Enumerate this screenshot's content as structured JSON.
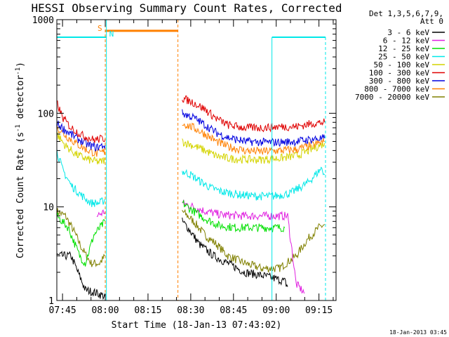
{
  "chart_data": {
    "type": "line",
    "title": "HESSI Observing Summary Count Rates, Corrected",
    "xlabel": "Start Time (18-Jan-13 07:43:02)",
    "ylabel": "Corrected Count Rate (s",
    "ylabel_sup1": "-1",
    "ylabel_mid": " detector",
    "ylabel_sup2": "-1",
    "ylabel_end": ")",
    "x_unit": "minutes from 07:43:02",
    "xlim": [
      0,
      98
    ],
    "ylim": [
      1,
      1000
    ],
    "yscale": "log",
    "x_ticks": [
      {
        "label": "07:45",
        "x": 2
      },
      {
        "label": "08:00",
        "x": 17
      },
      {
        "label": "08:15",
        "x": 32
      },
      {
        "label": "08:30",
        "x": 47
      },
      {
        "label": "08:45",
        "x": 62
      },
      {
        "label": "09:00",
        "x": 77
      },
      {
        "label": "09:15",
        "x": 92
      }
    ],
    "y_ticks": [
      {
        "label": "1",
        "y": 1
      },
      {
        "label": "10",
        "y": 10
      },
      {
        "label": "100",
        "y": 100
      },
      {
        "label": "1000",
        "y": 1000
      }
    ],
    "legend_header": [
      "Det 1,3,5,6,7,9,",
      "Att 0"
    ],
    "legend_position": "right",
    "series": [
      {
        "name": "3 - 6 keV",
        "color": "#000000",
        "seg1": [
          [
            0,
            3
          ],
          [
            5,
            3
          ],
          [
            10,
            1.3
          ],
          [
            14,
            1.2
          ],
          [
            17,
            1.1
          ]
        ],
        "seg2": [
          [
            44,
            7
          ],
          [
            46,
            6
          ],
          [
            50,
            4
          ],
          [
            55,
            3
          ],
          [
            60,
            2.5
          ],
          [
            66,
            2
          ],
          [
            74,
            1.8
          ],
          [
            80,
            1.6
          ],
          [
            81,
            1.4
          ]
        ]
      },
      {
        "name": "6 - 12 keV",
        "color": "#e020e0",
        "seg1": [
          [
            14,
            8
          ],
          [
            17,
            9
          ]
        ],
        "seg2": [
          [
            44,
            11
          ],
          [
            48,
            10
          ],
          [
            52,
            9
          ],
          [
            58,
            8.2
          ],
          [
            66,
            8
          ],
          [
            74,
            8
          ],
          [
            80,
            8
          ],
          [
            81,
            8
          ],
          [
            84,
            1.5
          ],
          [
            87,
            1.2
          ]
        ]
      },
      {
        "name": "12 - 25 keV",
        "color": "#00e000",
        "seg1": [
          [
            0,
            8
          ],
          [
            4,
            6
          ],
          [
            8,
            3
          ],
          [
            10,
            2.5
          ],
          [
            13,
            5
          ],
          [
            17,
            7
          ]
        ],
        "seg2": [
          [
            44,
            11
          ],
          [
            48,
            9
          ],
          [
            52,
            7.5
          ],
          [
            57,
            6.3
          ],
          [
            63,
            6
          ],
          [
            70,
            6
          ],
          [
            76,
            6
          ],
          [
            80,
            6
          ]
        ]
      },
      {
        "name": "25 - 50 keV",
        "color": "#00e8e8",
        "seg1": [
          [
            0,
            40
          ],
          [
            2,
            25
          ],
          [
            5,
            17
          ],
          [
            9,
            13
          ],
          [
            12,
            11
          ],
          [
            15,
            11
          ],
          [
            17,
            12
          ]
        ],
        "seg2": [
          [
            44,
            24
          ],
          [
            47,
            22
          ],
          [
            50,
            19
          ],
          [
            54,
            16
          ],
          [
            58,
            14.5
          ],
          [
            64,
            13.5
          ],
          [
            70,
            13
          ],
          [
            76,
            13
          ],
          [
            82,
            14
          ],
          [
            88,
            18
          ],
          [
            93,
            26
          ],
          [
            94,
            22
          ]
        ]
      },
      {
        "name": "50 - 100 keV",
        "color": "#d4d400",
        "seg1": [
          [
            0,
            60
          ],
          [
            3,
            45
          ],
          [
            7,
            36
          ],
          [
            11,
            32
          ],
          [
            15,
            30
          ],
          [
            17,
            32
          ]
        ],
        "seg2": [
          [
            44,
            50
          ],
          [
            48,
            45
          ],
          [
            52,
            40
          ],
          [
            56,
            35
          ],
          [
            60,
            33
          ],
          [
            66,
            32
          ],
          [
            72,
            32
          ],
          [
            78,
            33
          ],
          [
            84,
            35
          ],
          [
            90,
            42
          ],
          [
            94,
            48
          ]
        ]
      },
      {
        "name": "100 - 300 keV",
        "color": "#e00000",
        "seg1": [
          [
            0,
            130
          ],
          [
            2,
            90
          ],
          [
            5,
            70
          ],
          [
            9,
            58
          ],
          [
            13,
            52
          ],
          [
            17,
            54
          ]
        ],
        "seg2": [
          [
            44,
            145
          ],
          [
            48,
            130
          ],
          [
            52,
            110
          ],
          [
            56,
            88
          ],
          [
            60,
            75
          ],
          [
            66,
            70
          ],
          [
            72,
            70
          ],
          [
            78,
            72
          ],
          [
            84,
            72
          ],
          [
            90,
            78
          ],
          [
            94,
            80
          ]
        ]
      },
      {
        "name": "300 - 800 keV",
        "color": "#0000e0",
        "seg1": [
          [
            0,
            78
          ],
          [
            3,
            66
          ],
          [
            7,
            54
          ],
          [
            11,
            46
          ],
          [
            14,
            43
          ],
          [
            17,
            46
          ]
        ],
        "seg2": [
          [
            44,
            100
          ],
          [
            48,
            90
          ],
          [
            52,
            75
          ],
          [
            56,
            62
          ],
          [
            60,
            55
          ],
          [
            66,
            50
          ],
          [
            72,
            49
          ],
          [
            78,
            49
          ],
          [
            84,
            50
          ],
          [
            90,
            53
          ],
          [
            94,
            54
          ]
        ]
      },
      {
        "name": "800 - 7000 keV",
        "color": "#ff8000",
        "seg1": [
          [
            0,
            72
          ],
          [
            3,
            58
          ],
          [
            7,
            47
          ],
          [
            11,
            40
          ],
          [
            14,
            37
          ],
          [
            17,
            39
          ]
        ],
        "seg2": [
          [
            44,
            78
          ],
          [
            48,
            70
          ],
          [
            52,
            60
          ],
          [
            56,
            50
          ],
          [
            60,
            44
          ],
          [
            66,
            40
          ],
          [
            72,
            39
          ],
          [
            78,
            40
          ],
          [
            84,
            41
          ],
          [
            90,
            46
          ],
          [
            94,
            50
          ]
        ]
      },
      {
        "name": "7000 - 20000 keV",
        "color": "#808000",
        "seg1": [
          [
            0,
            9
          ],
          [
            3,
            8
          ],
          [
            6,
            5.5
          ],
          [
            9,
            3.5
          ],
          [
            12,
            2.5
          ],
          [
            15,
            2.5
          ],
          [
            17,
            3
          ]
        ],
        "seg2": [
          [
            44,
            9
          ],
          [
            48,
            7
          ],
          [
            52,
            5
          ],
          [
            56,
            4
          ],
          [
            60,
            3
          ],
          [
            66,
            2.5
          ],
          [
            72,
            2.2
          ],
          [
            78,
            2.2
          ],
          [
            84,
            3
          ],
          [
            88,
            4.5
          ],
          [
            92,
            6
          ],
          [
            94,
            6.5
          ]
        ]
      }
    ],
    "markers": [
      {
        "label": "S",
        "color": "#ff8000",
        "x": 17
      },
      {
        "label": "N",
        "color": "#00e8e8",
        "x": 17.4
      }
    ],
    "footer": "18-Jan-2013 03:45"
  }
}
